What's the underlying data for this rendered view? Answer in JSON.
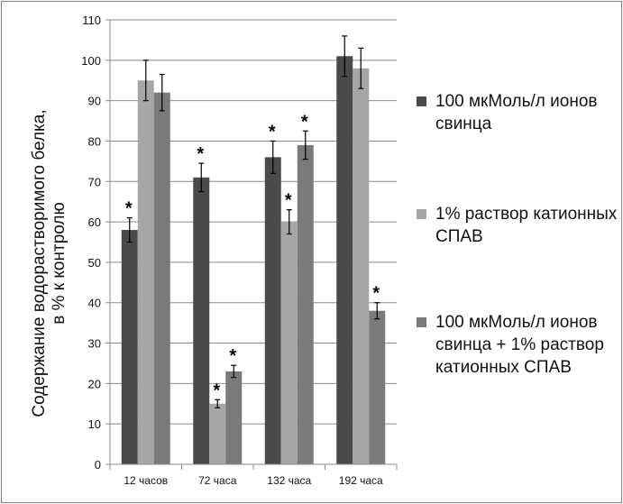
{
  "chart_data": {
    "type": "bar",
    "title": "",
    "ylabel_lines": [
      "Содержание водорастворимого белка,",
      "в % к контролю"
    ],
    "xlabel": "",
    "categories": [
      "12 часов",
      "72 часа",
      "132 часа",
      "192 часа"
    ],
    "ylim": [
      0,
      110
    ],
    "yticks": [
      0,
      10,
      20,
      30,
      40,
      50,
      60,
      70,
      80,
      90,
      100,
      110
    ],
    "grid": true,
    "legend_position": "right",
    "significance_marker": "*",
    "series": [
      {
        "name": "100 мкМоль/л ионов свинца",
        "color": "#4a4a4a",
        "values": [
          58,
          71,
          76,
          101
        ],
        "errors": [
          3,
          3.5,
          4,
          5
        ],
        "significant": [
          true,
          true,
          true,
          false
        ]
      },
      {
        "name": "1% раствор катионных СПАВ",
        "color": "#a6a6a6",
        "values": [
          95,
          15,
          60,
          98
        ],
        "errors": [
          5,
          1,
          3,
          5
        ],
        "significant": [
          false,
          true,
          true,
          false
        ]
      },
      {
        "name": "100 мкМоль/л ионов свинца + 1% раствор катионных СПАВ",
        "color": "#7a7a7a",
        "values": [
          92,
          23,
          79,
          38
        ],
        "errors": [
          4.5,
          1.5,
          3.5,
          2
        ],
        "significant": [
          false,
          true,
          true,
          true
        ]
      }
    ]
  }
}
